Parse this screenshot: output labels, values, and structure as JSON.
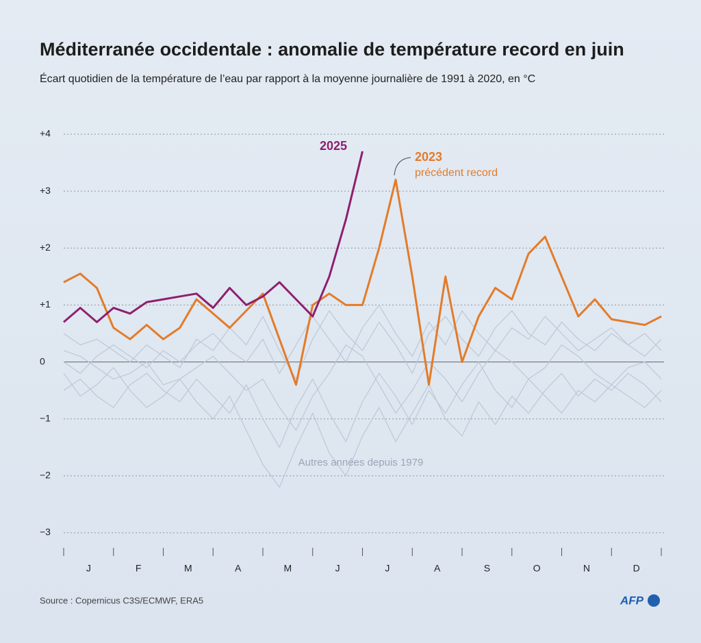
{
  "chart_data": {
    "type": "line",
    "title": "Méditerranée occidentale : anomalie de température record en juin",
    "subtitle": "Écart quotidien de la température de l’eau par rapport à la moyenne journalière de 1991 à 2020, en °C",
    "source": "Source : Copernicus C3S/ECMWF, ERA5",
    "credit": "AFP",
    "months": [
      "J",
      "F",
      "M",
      "A",
      "M",
      "J",
      "J",
      "A",
      "S",
      "O",
      "N",
      "D"
    ],
    "ylim": [
      -3,
      4
    ],
    "yticks": [
      {
        "value": 4,
        "label": "+4"
      },
      {
        "value": 3,
        "label": "+3"
      },
      {
        "value": 2,
        "label": "+2"
      },
      {
        "value": 1,
        "label": "+1"
      },
      0,
      {
        "value": -1,
        "label": "−1"
      },
      {
        "value": -2,
        "label": "−2"
      },
      {
        "value": -3,
        "label": "−3"
      }
    ],
    "grid": true,
    "others": {
      "label": "Autres années depuis 1979",
      "color": "#bcc7d8",
      "lines": [
        [
          0.2,
          0.1,
          -0.1,
          -0.3,
          -0.2,
          0.0,
          -0.4,
          -0.3,
          -0.1,
          0.1,
          -0.2,
          -0.5,
          -0.3,
          -0.8,
          -1.2,
          -0.6,
          -0.2,
          0.3,
          0.1,
          -0.4,
          -0.9,
          -0.5,
          0.0,
          -0.3,
          -0.7,
          -0.2,
          0.2,
          0.0,
          -0.3,
          -0.1,
          0.3,
          0.1,
          -0.2,
          -0.4,
          -0.1,
          0.0,
          -0.3
        ],
        [
          -0.5,
          -0.3,
          -0.6,
          -0.8,
          -0.4,
          -0.2,
          -0.5,
          -0.7,
          -0.3,
          -0.6,
          -0.9,
          -0.4,
          -1.0,
          -1.5,
          -0.8,
          -0.3,
          -0.9,
          -1.4,
          -0.7,
          -0.2,
          -0.6,
          -1.1,
          -0.5,
          -0.9,
          -0.4,
          0.0,
          -0.5,
          -0.8,
          -0.3,
          -0.6,
          -0.9,
          -0.5,
          -0.7,
          -0.4,
          -0.6,
          -0.8,
          -0.5
        ],
        [
          0.5,
          0.3,
          0.4,
          0.2,
          0.0,
          0.3,
          0.1,
          -0.1,
          0.4,
          0.2,
          0.6,
          0.3,
          0.8,
          0.2,
          -0.3,
          0.4,
          0.9,
          0.5,
          0.2,
          0.7,
          0.3,
          -0.2,
          0.5,
          0.8,
          0.4,
          0.1,
          0.6,
          0.9,
          0.5,
          0.3,
          0.7,
          0.4,
          0.2,
          0.5,
          0.3,
          0.1,
          0.4
        ],
        [
          -0.2,
          -0.6,
          -0.4,
          -0.1,
          -0.5,
          -0.8,
          -0.6,
          -0.3,
          -0.7,
          -1.0,
          -0.6,
          -1.2,
          -1.8,
          -2.2,
          -1.5,
          -0.9,
          -1.6,
          -2.0,
          -1.3,
          -0.8,
          -1.4,
          -0.9,
          -0.4,
          -1.0,
          -1.3,
          -0.7,
          -1.1,
          -0.6,
          -0.9,
          -0.5,
          -0.2,
          -0.6,
          -0.3,
          -0.5,
          -0.2,
          -0.4,
          -0.7
        ],
        [
          0.0,
          -0.2,
          0.1,
          0.3,
          0.1,
          -0.1,
          0.2,
          0.0,
          0.3,
          0.5,
          0.2,
          0.0,
          0.4,
          -0.2,
          0.3,
          0.8,
          0.4,
          0.0,
          0.6,
          1.0,
          0.5,
          0.1,
          0.7,
          0.3,
          0.9,
          0.5,
          0.2,
          0.6,
          0.4,
          0.8,
          0.5,
          0.2,
          0.4,
          0.6,
          0.3,
          0.5,
          0.2
        ]
      ]
    },
    "series": [
      {
        "name": "2025",
        "color": "#8e1f6e",
        "values": [
          0.7,
          0.95,
          0.7,
          0.95,
          0.85,
          1.05,
          1.1,
          1.15,
          1.2,
          0.95,
          1.3,
          1.0,
          1.15,
          1.4,
          1.1,
          0.8,
          1.5,
          2.5,
          3.7,
          null,
          null,
          null,
          null,
          null,
          null,
          null,
          null,
          null,
          null,
          null,
          null,
          null,
          null,
          null,
          null,
          null,
          null
        ]
      },
      {
        "name": "2023",
        "color": "#e37b28",
        "note": "précédent record",
        "values": [
          1.4,
          1.55,
          1.3,
          0.6,
          0.4,
          0.65,
          0.4,
          0.6,
          1.1,
          0.85,
          0.6,
          0.9,
          1.2,
          0.4,
          -0.4,
          1.0,
          1.2,
          1.0,
          1.0,
          2.0,
          3.2,
          1.5,
          -0.4,
          1.5,
          0.0,
          0.8,
          1.3,
          1.1,
          1.9,
          2.2,
          1.5,
          0.8,
          1.1,
          0.75,
          0.7,
          0.65,
          0.8
        ]
      }
    ]
  }
}
